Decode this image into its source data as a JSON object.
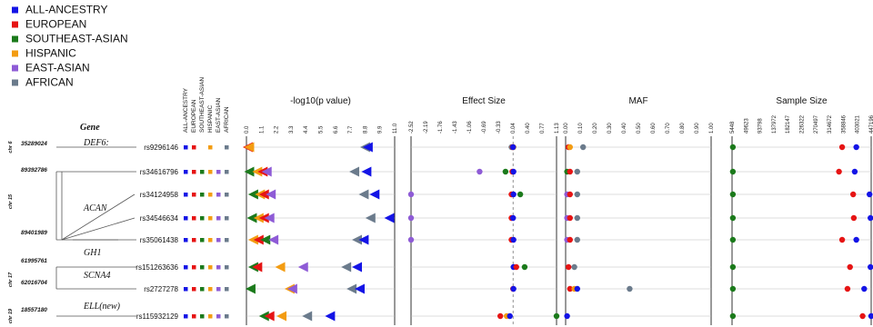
{
  "chart_data": {
    "type": "scatter",
    "legend": [
      {
        "name": "ALL-ANCESTRY",
        "color": "#1414e6"
      },
      {
        "name": "EUROPEAN",
        "color": "#e61414"
      },
      {
        "name": "SOUTHEAST-ASIAN",
        "color": "#1b7a1b"
      },
      {
        "name": "HISPANIC",
        "color": "#f39c12"
      },
      {
        "name": "EAST-ASIAN",
        "color": "#8e5bd6"
      },
      {
        "name": "AFRICAN",
        "color": "#6b7b8c"
      }
    ],
    "ancestry_columns": [
      "ALL-ANCESTRY",
      "EUROPEAN",
      "SOUTHEAST-ASIAN",
      "HISPANIC",
      "EAST-ASIAN",
      "AFRICAN"
    ],
    "gene_header": "Gene",
    "genes": [
      {
        "name": "DEF6:"
      },
      {
        "name": "ACAN"
      },
      {
        "name": "GH1"
      },
      {
        "name": "SCNA4"
      },
      {
        "name": "ELL(new)"
      }
    ],
    "positions": [
      "35289024",
      "89392786",
      "89401989",
      "61995761",
      "62016704",
      "18557180"
    ],
    "chromosomes": [
      "chr 6",
      "chr 15",
      "chr 17",
      "chr 19"
    ],
    "snps": [
      {
        "id": "rs9296146",
        "anc": [
          1,
          1,
          0,
          1,
          0,
          1
        ]
      },
      {
        "id": "rs34616796",
        "anc": [
          1,
          1,
          1,
          1,
          1,
          1
        ]
      },
      {
        "id": "rs34124958",
        "anc": [
          1,
          1,
          1,
          1,
          1,
          1
        ]
      },
      {
        "id": "rs34546634",
        "anc": [
          1,
          1,
          1,
          1,
          1,
          1
        ]
      },
      {
        "id": "rs35061438",
        "anc": [
          1,
          1,
          1,
          1,
          1,
          1
        ]
      },
      {
        "id": "rs151263636",
        "anc": [
          1,
          1,
          1,
          1,
          1,
          1
        ]
      },
      {
        "id": "rs2727278",
        "anc": [
          1,
          1,
          1,
          1,
          1,
          1
        ]
      },
      {
        "id": "rs115932129",
        "anc": [
          1,
          1,
          1,
          1,
          1,
          1
        ]
      }
    ],
    "panels": [
      {
        "title": "-log10(p value)",
        "ticks": [
          "0.0",
          "1.1",
          "2.2",
          "3.3",
          "4.4",
          "5.5",
          "6.6",
          "7.7",
          "8.8",
          "9.9",
          "11.0"
        ],
        "xlim": [
          0,
          11
        ],
        "marker": "triangle",
        "points": [
          {
            "snp": 0,
            "ancestry": "EUROPEAN",
            "value": 0.1
          },
          {
            "snp": 0,
            "ancestry": "HISPANIC",
            "value": 0.2
          },
          {
            "snp": 0,
            "ancestry": "AFRICAN",
            "value": 8.8
          },
          {
            "snp": 0,
            "ancestry": "ALL-ANCESTRY",
            "value": 9.0
          },
          {
            "snp": 1,
            "ancestry": "SOUTHEAST-ASIAN",
            "value": 0.2
          },
          {
            "snp": 1,
            "ancestry": "HISPANIC",
            "value": 0.8
          },
          {
            "snp": 1,
            "ancestry": "EUROPEAN",
            "value": 1.2
          },
          {
            "snp": 1,
            "ancestry": "EAST-ASIAN",
            "value": 1.5
          },
          {
            "snp": 1,
            "ancestry": "AFRICAN",
            "value": 8.0
          },
          {
            "snp": 1,
            "ancestry": "ALL-ANCESTRY",
            "value": 8.9
          },
          {
            "snp": 2,
            "ancestry": "SOUTHEAST-ASIAN",
            "value": 0.5
          },
          {
            "snp": 2,
            "ancestry": "HISPANIC",
            "value": 1.0
          },
          {
            "snp": 2,
            "ancestry": "EUROPEAN",
            "value": 1.3
          },
          {
            "snp": 2,
            "ancestry": "EAST-ASIAN",
            "value": 1.8
          },
          {
            "snp": 2,
            "ancestry": "AFRICAN",
            "value": 8.7
          },
          {
            "snp": 2,
            "ancestry": "ALL-ANCESTRY",
            "value": 9.5
          },
          {
            "snp": 3,
            "ancestry": "SOUTHEAST-ASIAN",
            "value": 0.4
          },
          {
            "snp": 3,
            "ancestry": "HISPANIC",
            "value": 0.9
          },
          {
            "snp": 3,
            "ancestry": "EUROPEAN",
            "value": 1.3
          },
          {
            "snp": 3,
            "ancestry": "EAST-ASIAN",
            "value": 1.7
          },
          {
            "snp": 3,
            "ancestry": "AFRICAN",
            "value": 9.2
          },
          {
            "snp": 3,
            "ancestry": "ALL-ANCESTRY",
            "value": 10.6
          },
          {
            "snp": 4,
            "ancestry": "HISPANIC",
            "value": 0.5
          },
          {
            "snp": 4,
            "ancestry": "EUROPEAN",
            "value": 0.9
          },
          {
            "snp": 4,
            "ancestry": "SOUTHEAST-ASIAN",
            "value": 1.4
          },
          {
            "snp": 4,
            "ancestry": "EAST-ASIAN",
            "value": 2.0
          },
          {
            "snp": 4,
            "ancestry": "AFRICAN",
            "value": 8.2
          },
          {
            "snp": 4,
            "ancestry": "ALL-ANCESTRY",
            "value": 8.7
          },
          {
            "snp": 5,
            "ancestry": "SOUTHEAST-ASIAN",
            "value": 0.5
          },
          {
            "snp": 5,
            "ancestry": "EUROPEAN",
            "value": 0.8
          },
          {
            "snp": 5,
            "ancestry": "HISPANIC",
            "value": 2.5
          },
          {
            "snp": 5,
            "ancestry": "EAST-ASIAN",
            "value": 4.2
          },
          {
            "snp": 5,
            "ancestry": "AFRICAN",
            "value": 7.4
          },
          {
            "snp": 5,
            "ancestry": "ALL-ANCESTRY",
            "value": 8.2
          },
          {
            "snp": 6,
            "ancestry": "SOUTHEAST-ASIAN",
            "value": 0.3
          },
          {
            "snp": 6,
            "ancestry": "HISPANIC",
            "value": 3.2
          },
          {
            "snp": 6,
            "ancestry": "EAST-ASIAN",
            "value": 3.4
          },
          {
            "snp": 6,
            "ancestry": "AFRICAN",
            "value": 7.8
          },
          {
            "snp": 6,
            "ancestry": "ALL-ANCESTRY",
            "value": 8.4
          },
          {
            "snp": 7,
            "ancestry": "SOUTHEAST-ASIAN",
            "value": 1.3
          },
          {
            "snp": 7,
            "ancestry": "EUROPEAN",
            "value": 1.7
          },
          {
            "snp": 7,
            "ancestry": "HISPANIC",
            "value": 2.6
          },
          {
            "snp": 7,
            "ancestry": "AFRICAN",
            "value": 4.5
          },
          {
            "snp": 7,
            "ancestry": "ALL-ANCESTRY",
            "value": 6.2
          }
        ]
      },
      {
        "title": "Effect Size",
        "ticks": [
          "-2.52",
          "-2.19",
          "-1.76",
          "-1.43",
          "-1.06",
          "-0.69",
          "-0.33",
          "0.04",
          "0.40",
          "0.77",
          "1.13"
        ],
        "xlim": [
          -2.52,
          1.13
        ],
        "marker": "circle",
        "reference_line": 0.04,
        "points": [
          {
            "snp": 0,
            "ancestry": "AFRICAN",
            "value": 0.0
          },
          {
            "snp": 0,
            "ancestry": "EUROPEAN",
            "value": 0.03
          },
          {
            "snp": 0,
            "ancestry": "HISPANIC",
            "value": 0.05
          },
          {
            "snp": 0,
            "ancestry": "ALL-ANCESTRY",
            "value": 0.04
          },
          {
            "snp": 1,
            "ancestry": "EAST-ASIAN",
            "value": -0.8
          },
          {
            "snp": 1,
            "ancestry": "SOUTHEAST-ASIAN",
            "value": -0.15
          },
          {
            "snp": 1,
            "ancestry": "EUROPEAN",
            "value": 0.02
          },
          {
            "snp": 1,
            "ancestry": "ALL-ANCESTRY",
            "value": 0.05
          },
          {
            "snp": 2,
            "ancestry": "EAST-ASIAN",
            "value": -2.52
          },
          {
            "snp": 2,
            "ancestry": "EUROPEAN",
            "value": 0.0
          },
          {
            "snp": 2,
            "ancestry": "ALL-ANCESTRY",
            "value": 0.05
          },
          {
            "snp": 2,
            "ancestry": "SOUTHEAST-ASIAN",
            "value": 0.22
          },
          {
            "snp": 3,
            "ancestry": "EAST-ASIAN",
            "value": -2.52
          },
          {
            "snp": 3,
            "ancestry": "EUROPEAN",
            "value": 0.0
          },
          {
            "snp": 3,
            "ancestry": "ALL-ANCESTRY",
            "value": 0.04
          },
          {
            "snp": 4,
            "ancestry": "EAST-ASIAN",
            "value": -2.52
          },
          {
            "snp": 4,
            "ancestry": "EUROPEAN",
            "value": 0.0
          },
          {
            "snp": 4,
            "ancestry": "ALL-ANCESTRY",
            "value": 0.05
          },
          {
            "snp": 5,
            "ancestry": "ALL-ANCESTRY",
            "value": 0.05
          },
          {
            "snp": 5,
            "ancestry": "EUROPEAN",
            "value": 0.12
          },
          {
            "snp": 5,
            "ancestry": "SOUTHEAST-ASIAN",
            "value": 0.33
          },
          {
            "snp": 6,
            "ancestry": "EUROPEAN",
            "value": 0.04
          },
          {
            "snp": 6,
            "ancestry": "ALL-ANCESTRY",
            "value": 0.05
          },
          {
            "snp": 7,
            "ancestry": "EUROPEAN",
            "value": -0.28
          },
          {
            "snp": 7,
            "ancestry": "HISPANIC",
            "value": -0.12
          },
          {
            "snp": 7,
            "ancestry": "ALL-ANCESTRY",
            "value": -0.04
          },
          {
            "snp": 7,
            "ancestry": "SOUTHEAST-ASIAN",
            "value": 1.13
          }
        ]
      },
      {
        "title": "MAF",
        "ticks": [
          "0.00",
          "0.10",
          "0.20",
          "0.30",
          "0.40",
          "0.50",
          "0.60",
          "0.70",
          "0.80",
          "0.90",
          "1.00"
        ],
        "xlim": [
          0,
          1
        ],
        "marker": "circle",
        "points": [
          {
            "snp": 0,
            "ancestry": "EUROPEAN",
            "value": 0.02
          },
          {
            "snp": 0,
            "ancestry": "HISPANIC",
            "value": 0.03
          },
          {
            "snp": 0,
            "ancestry": "AFRICAN",
            "value": 0.12
          },
          {
            "snp": 1,
            "ancestry": "SOUTHEAST-ASIAN",
            "value": 0.01
          },
          {
            "snp": 1,
            "ancestry": "EUROPEAN",
            "value": 0.03
          },
          {
            "snp": 1,
            "ancestry": "AFRICAN",
            "value": 0.08
          },
          {
            "snp": 2,
            "ancestry": "EAST-ASIAN",
            "value": 0.01
          },
          {
            "snp": 2,
            "ancestry": "EUROPEAN",
            "value": 0.03
          },
          {
            "snp": 2,
            "ancestry": "AFRICAN",
            "value": 0.08
          },
          {
            "snp": 3,
            "ancestry": "EAST-ASIAN",
            "value": 0.01
          },
          {
            "snp": 3,
            "ancestry": "EUROPEAN",
            "value": 0.03
          },
          {
            "snp": 3,
            "ancestry": "AFRICAN",
            "value": 0.08
          },
          {
            "snp": 4,
            "ancestry": "EAST-ASIAN",
            "value": 0.01
          },
          {
            "snp": 4,
            "ancestry": "EUROPEAN",
            "value": 0.03
          },
          {
            "snp": 4,
            "ancestry": "AFRICAN",
            "value": 0.08
          },
          {
            "snp": 5,
            "ancestry": "EUROPEAN",
            "value": 0.02
          },
          {
            "snp": 5,
            "ancestry": "AFRICAN",
            "value": 0.06
          },
          {
            "snp": 6,
            "ancestry": "EUROPEAN",
            "value": 0.03
          },
          {
            "snp": 6,
            "ancestry": "HISPANIC",
            "value": 0.06
          },
          {
            "snp": 6,
            "ancestry": "ALL-ANCESTRY",
            "value": 0.08
          },
          {
            "snp": 6,
            "ancestry": "AFRICAN",
            "value": 0.44
          },
          {
            "snp": 7,
            "ancestry": "ALL-ANCESTRY",
            "value": 0.01
          }
        ]
      },
      {
        "title": "Sample Size",
        "ticks": [
          "5448",
          "49623",
          "93798",
          "137972",
          "182147",
          "226322",
          "270497",
          "314672",
          "358846",
          "403021",
          "447196"
        ],
        "xlim": [
          5448,
          447196
        ],
        "marker": "circle",
        "points": [
          {
            "snp": 0,
            "ancestry": "SOUTHEAST-ASIAN",
            "value": 8000
          },
          {
            "snp": 0,
            "ancestry": "EUROPEAN",
            "value": 355000
          },
          {
            "snp": 0,
            "ancestry": "ALL-ANCESTRY",
            "value": 400000
          },
          {
            "snp": 1,
            "ancestry": "SOUTHEAST-ASIAN",
            "value": 8000
          },
          {
            "snp": 1,
            "ancestry": "EUROPEAN",
            "value": 345000
          },
          {
            "snp": 1,
            "ancestry": "ALL-ANCESTRY",
            "value": 395000
          },
          {
            "snp": 2,
            "ancestry": "SOUTHEAST-ASIAN",
            "value": 8000
          },
          {
            "snp": 2,
            "ancestry": "EUROPEAN",
            "value": 390000
          },
          {
            "snp": 2,
            "ancestry": "ALL-ANCESTRY",
            "value": 442000
          },
          {
            "snp": 3,
            "ancestry": "SOUTHEAST-ASIAN",
            "value": 8000
          },
          {
            "snp": 3,
            "ancestry": "EUROPEAN",
            "value": 392000
          },
          {
            "snp": 3,
            "ancestry": "ALL-ANCESTRY",
            "value": 445000
          },
          {
            "snp": 4,
            "ancestry": "SOUTHEAST-ASIAN",
            "value": 8000
          },
          {
            "snp": 4,
            "ancestry": "EUROPEAN",
            "value": 355000
          },
          {
            "snp": 4,
            "ancestry": "ALL-ANCESTRY",
            "value": 400000
          },
          {
            "snp": 5,
            "ancestry": "SOUTHEAST-ASIAN",
            "value": 8000
          },
          {
            "snp": 5,
            "ancestry": "EUROPEAN",
            "value": 380000
          },
          {
            "snp": 5,
            "ancestry": "ALL-ANCESTRY",
            "value": 445000
          },
          {
            "snp": 6,
            "ancestry": "SOUTHEAST-ASIAN",
            "value": 8000
          },
          {
            "snp": 6,
            "ancestry": "EUROPEAN",
            "value": 372000
          },
          {
            "snp": 6,
            "ancestry": "ALL-ANCESTRY",
            "value": 425000
          },
          {
            "snp": 7,
            "ancestry": "SOUTHEAST-ASIAN",
            "value": 8000
          },
          {
            "snp": 7,
            "ancestry": "EUROPEAN",
            "value": 420000
          },
          {
            "snp": 7,
            "ancestry": "ALL-ANCESTRY",
            "value": 447196
          }
        ]
      }
    ]
  }
}
